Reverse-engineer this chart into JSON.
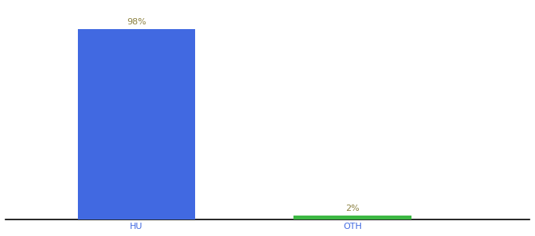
{
  "categories": [
    "HU",
    "OTH"
  ],
  "values": [
    98,
    2
  ],
  "bar_colors": [
    "#4169e1",
    "#3cb843"
  ],
  "label_color": "#8b8040",
  "tick_color": "#4169e1",
  "label_fontsize": 8,
  "tick_fontsize": 8,
  "background_color": "#ffffff",
  "ylim": [
    0,
    110
  ],
  "bar_width": 0.18,
  "x_positions": [
    0.25,
    0.58
  ],
  "xlim": [
    0.05,
    0.85
  ],
  "annotations": [
    "98%",
    "2%"
  ]
}
